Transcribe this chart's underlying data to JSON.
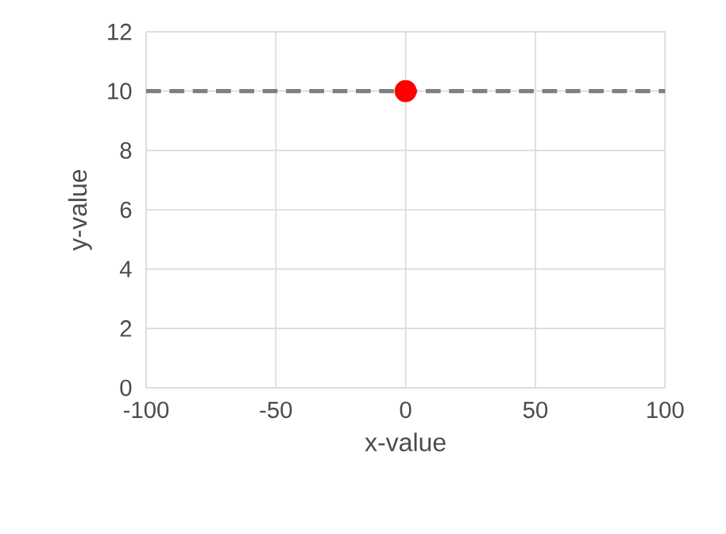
{
  "chart_data": {
    "type": "scatter",
    "xlabel": "x-value",
    "ylabel": "y-value",
    "x": [
      0
    ],
    "values": [
      10
    ],
    "color": "#ff0000",
    "marker": "circle",
    "xlim": [
      -100,
      100
    ],
    "xticks": [
      -100,
      -50,
      0,
      50,
      100
    ],
    "ylim": [
      0,
      12
    ],
    "yticks": [
      0,
      2,
      4,
      6,
      8,
      10,
      12
    ],
    "grid": true,
    "ref_lines": [
      {
        "axis": "y",
        "value": 10,
        "color": "#7f7f7f",
        "line_style": "dashed"
      }
    ]
  }
}
